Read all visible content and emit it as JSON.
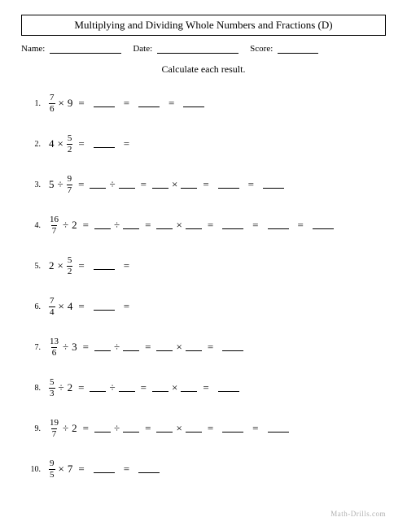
{
  "title": "Multiplying and Dividing Whole Numbers and Fractions (D)",
  "header": {
    "name_label": "Name:",
    "date_label": "Date:",
    "score_label": "Score:"
  },
  "instruction": "Calculate each result.",
  "watermark": "Math-Drills.com",
  "symbols": {
    "times": "×",
    "div": "÷",
    "eq": "="
  },
  "problems": [
    {
      "num": "1.",
      "lhs": {
        "a": {
          "type": "frac",
          "n": "7",
          "d": "6"
        },
        "op": "×",
        "b": {
          "type": "whole",
          "v": "9"
        }
      },
      "steps": [
        "B",
        "E",
        "B",
        "E",
        "B"
      ]
    },
    {
      "num": "2.",
      "lhs": {
        "a": {
          "type": "whole",
          "v": "4"
        },
        "op": "×",
        "b": {
          "type": "frac",
          "n": "5",
          "d": "2"
        }
      },
      "steps": [
        "B",
        "E"
      ]
    },
    {
      "num": "3.",
      "lhs": {
        "a": {
          "type": "whole",
          "v": "5"
        },
        "op": "÷",
        "b": {
          "type": "frac",
          "n": "9",
          "d": "7"
        }
      },
      "steps": [
        "BdB",
        "E",
        "BxB",
        "E",
        "B",
        "E",
        "B"
      ]
    },
    {
      "num": "4.",
      "lhs": {
        "a": {
          "type": "frac",
          "n": "16",
          "d": "7"
        },
        "op": "÷",
        "b": {
          "type": "whole",
          "v": "2"
        }
      },
      "steps": [
        "BdB",
        "E",
        "BxB",
        "E",
        "B",
        "E",
        "B",
        "E",
        "B"
      ]
    },
    {
      "num": "5.",
      "lhs": {
        "a": {
          "type": "whole",
          "v": "2"
        },
        "op": "×",
        "b": {
          "type": "frac",
          "n": "5",
          "d": "2"
        }
      },
      "steps": [
        "B",
        "E"
      ]
    },
    {
      "num": "6.",
      "lhs": {
        "a": {
          "type": "frac",
          "n": "7",
          "d": "4"
        },
        "op": "×",
        "b": {
          "type": "whole",
          "v": "4"
        }
      },
      "steps": [
        "B",
        "E"
      ]
    },
    {
      "num": "7.",
      "lhs": {
        "a": {
          "type": "frac",
          "n": "13",
          "d": "6"
        },
        "op": "÷",
        "b": {
          "type": "whole",
          "v": "3"
        }
      },
      "steps": [
        "BdB",
        "E",
        "BxB",
        "E",
        "B"
      ]
    },
    {
      "num": "8.",
      "lhs": {
        "a": {
          "type": "frac",
          "n": "5",
          "d": "3"
        },
        "op": "÷",
        "b": {
          "type": "whole",
          "v": "2"
        }
      },
      "steps": [
        "BdB",
        "E",
        "BxB",
        "E",
        "B"
      ]
    },
    {
      "num": "9.",
      "lhs": {
        "a": {
          "type": "frac",
          "n": "19",
          "d": "7"
        },
        "op": "÷",
        "b": {
          "type": "whole",
          "v": "2"
        }
      },
      "steps": [
        "BdB",
        "E",
        "BxB",
        "E",
        "B",
        "E",
        "B"
      ]
    },
    {
      "num": "10.",
      "lhs": {
        "a": {
          "type": "frac",
          "n": "9",
          "d": "5"
        },
        "op": "×",
        "b": {
          "type": "whole",
          "v": "7"
        }
      },
      "steps": [
        "B",
        "E",
        "B"
      ]
    }
  ],
  "colors": {
    "text": "#000000",
    "bg": "#ffffff",
    "watermark": "#b0b0b0"
  }
}
